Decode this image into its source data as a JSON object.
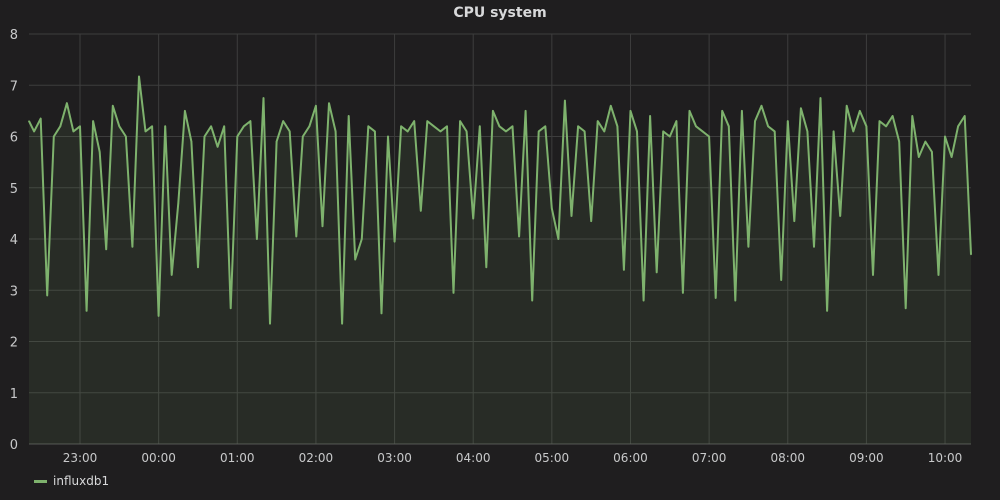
{
  "chart_data": {
    "type": "line",
    "title": "CPU system",
    "xlabel": "",
    "ylabel": "",
    "ylim": [
      0,
      8
    ],
    "yticks": [
      "0",
      "1",
      "2",
      "3",
      "4",
      "5",
      "6",
      "7",
      "8"
    ],
    "xticks": [
      "23:00",
      "00:00",
      "01:00",
      "02:00",
      "03:00",
      "04:00",
      "05:00",
      "06:00",
      "07:00",
      "08:00",
      "09:00",
      "10:00"
    ],
    "xlim": [
      "22:20",
      "10:20"
    ],
    "grid": true,
    "legend_placement": "bottom-left",
    "colors": {
      "series": "#7eb26d",
      "background": "#1f1e1f",
      "grid": "#3d3d3d"
    },
    "x": [
      "22:20",
      "22:25",
      "22:30",
      "22:35",
      "22:40",
      "22:45",
      "22:50",
      "22:55",
      "23:00",
      "23:05",
      "23:10",
      "23:15",
      "23:20",
      "23:25",
      "23:30",
      "23:35",
      "23:40",
      "23:45",
      "23:50",
      "23:55",
      "00:00",
      "00:05",
      "00:10",
      "00:15",
      "00:20",
      "00:25",
      "00:30",
      "00:35",
      "00:40",
      "00:45",
      "00:50",
      "00:55",
      "01:00",
      "01:05",
      "01:10",
      "01:15",
      "01:20",
      "01:25",
      "01:30",
      "01:35",
      "01:40",
      "01:45",
      "01:50",
      "01:55",
      "02:00",
      "02:05",
      "02:10",
      "02:15",
      "02:20",
      "02:25",
      "02:30",
      "02:35",
      "02:40",
      "02:45",
      "02:50",
      "02:55",
      "03:00",
      "03:05",
      "03:10",
      "03:15",
      "03:20",
      "03:25",
      "03:30",
      "03:35",
      "03:40",
      "03:45",
      "03:50",
      "03:55",
      "04:00",
      "04:05",
      "04:10",
      "04:15",
      "04:20",
      "04:25",
      "04:30",
      "04:35",
      "04:40",
      "04:45",
      "04:50",
      "04:55",
      "05:00",
      "05:05",
      "05:10",
      "05:15",
      "05:20",
      "05:25",
      "05:30",
      "05:35",
      "05:40",
      "05:45",
      "05:50",
      "05:55",
      "06:00",
      "06:05",
      "06:10",
      "06:15",
      "06:20",
      "06:25",
      "06:30",
      "06:35",
      "06:40",
      "06:45",
      "06:50",
      "06:55",
      "07:00",
      "07:05",
      "07:10",
      "07:15",
      "07:20",
      "07:25",
      "07:30",
      "07:35",
      "07:40",
      "07:45",
      "07:50",
      "07:55",
      "08:00",
      "08:05",
      "08:10",
      "08:15",
      "08:20",
      "08:25",
      "08:30",
      "08:35",
      "08:40",
      "08:45",
      "08:50",
      "08:55",
      "09:00",
      "09:05",
      "09:10",
      "09:15",
      "09:20",
      "09:25",
      "09:30",
      "09:35",
      "09:40",
      "09:45",
      "09:50",
      "09:55",
      "10:00",
      "10:05",
      "10:10",
      "10:15",
      "10:20"
    ],
    "series": [
      {
        "name": "influxdb1",
        "values": [
          6.3,
          6.1,
          6.35,
          2.9,
          6.0,
          6.2,
          6.65,
          6.1,
          6.2,
          2.6,
          6.3,
          5.7,
          3.8,
          6.6,
          6.2,
          6.0,
          3.85,
          7.17,
          6.1,
          6.2,
          2.5,
          6.2,
          3.3,
          4.7,
          6.5,
          5.9,
          3.45,
          6.0,
          6.2,
          5.8,
          6.2,
          2.65,
          6.0,
          6.2,
          6.3,
          4.0,
          6.75,
          2.35,
          5.9,
          6.3,
          6.1,
          4.05,
          6.0,
          6.2,
          6.6,
          4.25,
          6.65,
          6.1,
          2.35,
          6.4,
          3.6,
          4.0,
          6.2,
          6.1,
          2.55,
          6.0,
          3.95,
          6.2,
          6.1,
          6.3,
          4.55,
          6.3,
          6.2,
          6.1,
          6.2,
          2.95,
          6.3,
          6.1,
          4.4,
          6.2,
          3.45,
          6.5,
          6.2,
          6.1,
          6.2,
          4.05,
          6.5,
          2.8,
          6.1,
          6.2,
          4.6,
          4.0,
          6.7,
          4.45,
          6.2,
          6.1,
          4.35,
          6.3,
          6.1,
          6.6,
          6.2,
          3.4,
          6.5,
          6.1,
          2.8,
          6.4,
          3.35,
          6.1,
          6.0,
          6.3,
          2.95,
          6.5,
          6.2,
          6.1,
          6.0,
          2.85,
          6.5,
          6.2,
          2.8,
          6.5,
          3.85,
          6.3,
          6.6,
          6.2,
          6.1,
          3.2,
          6.3,
          4.35,
          6.55,
          6.1,
          3.85,
          6.75,
          2.6,
          6.1,
          4.45,
          6.6,
          6.1,
          6.5,
          6.2,
          3.3,
          6.3,
          6.2,
          6.4,
          5.9,
          2.65,
          6.4,
          5.6,
          5.9,
          5.7,
          3.3,
          6.0,
          5.6,
          6.2,
          6.4,
          3.7
        ]
      }
    ]
  }
}
